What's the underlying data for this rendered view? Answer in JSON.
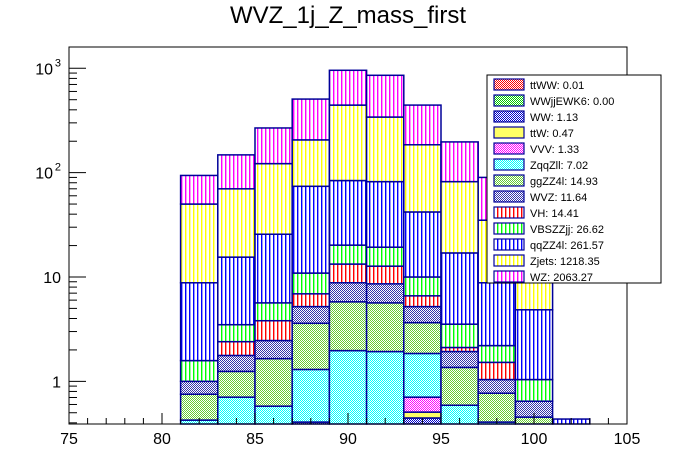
{
  "chart_data": {
    "type": "bar",
    "subtype": "stacked-histogram",
    "title": "WVZ_1j_Z_mass_first",
    "xlabel": "",
    "ylabel": "",
    "xlim": [
      75,
      105
    ],
    "ylim": [
      0.39,
      1600
    ],
    "yscale": "log",
    "grid": false,
    "legend_position": "top-right",
    "x_ticks": [
      "75",
      "80",
      "85",
      "90",
      "95",
      "100",
      "105"
    ],
    "x_tick_values": [
      75,
      80,
      85,
      90,
      95,
      100,
      105
    ],
    "y_ticks": [
      {
        "value": 1,
        "label": "1",
        "exp": ""
      },
      {
        "value": 10,
        "label": "10",
        "exp": ""
      },
      {
        "value": 100,
        "label": "10",
        "exp": "2"
      },
      {
        "value": 1000,
        "label": "10",
        "exp": "3"
      }
    ],
    "bin_edges": [
      81,
      83,
      85,
      87,
      89,
      91,
      93,
      95,
      97,
      99,
      101,
      103
    ],
    "stack_order_bottom_to_top": [
      "ttWW",
      "WWjjEWK6",
      "WW",
      "ttW",
      "VVV",
      "ZqqZll",
      "ggZZ4l",
      "WVZ",
      "VH",
      "VBSZZjj",
      "qqZZ4l",
      "Zjets",
      "WZ"
    ],
    "cumulative_tops": {
      "ttWW": [
        0,
        0,
        0,
        0,
        0,
        0,
        0,
        0,
        0,
        0,
        0
      ],
      "WWjjEWK6": [
        0,
        0,
        0,
        0,
        0,
        0,
        0,
        0,
        0,
        0,
        0
      ],
      "WW": [
        0,
        0,
        0,
        0.407,
        0,
        0,
        0.445,
        0,
        0,
        0,
        0
      ],
      "ttW": [
        0,
        0,
        0,
        0.407,
        0,
        0,
        0.507,
        0,
        0,
        0,
        0
      ],
      "VVV": [
        0,
        0,
        0,
        0.407,
        0,
        0,
        0.705,
        0,
        0,
        0,
        0
      ],
      "ZqqZll": [
        0.425,
        0.705,
        0.578,
        1.3,
        1.97,
        1.93,
        1.85,
        0.59,
        0.407,
        0.39,
        0
      ],
      "ggZZ4l": [
        0.752,
        1.245,
        1.65,
        3.6,
        5.78,
        5.65,
        3.65,
        1.36,
        0.769,
        0.454,
        0
      ],
      "WVZ": [
        1.0,
        1.77,
        2.46,
        5.2,
        8.8,
        8.6,
        5.2,
        1.93,
        1.04,
        0.645,
        0
      ],
      "VH": [
        1.0,
        2.4,
        3.81,
        6.9,
        13.3,
        12.7,
        6.6,
        2.11,
        1.52,
        0.645,
        0
      ],
      "VBSZZjj": [
        1.58,
        3.49,
        5.65,
        10.9,
        20.2,
        19.3,
        10.0,
        3.53,
        2.2,
        1.04,
        0
      ],
      "qqZZ4l": [
        8.8,
        15.5,
        25.7,
        74,
        84,
        82,
        42,
        17,
        8.8,
        4.85,
        0.435
      ],
      "Zjets": [
        50,
        70,
        122,
        206,
        444,
        341,
        185,
        82,
        35,
        9,
        0.435
      ],
      "WZ": [
        94,
        148,
        268,
        507,
        957,
        857,
        444,
        197,
        90,
        9,
        0.435
      ]
    },
    "series": [
      {
        "name": "ttWW",
        "label": "ttWW: 0.01",
        "total": 0.01,
        "fill": "#ff0000",
        "pattern": "checker"
      },
      {
        "name": "WWjjEWK6",
        "label": "WWjjEWK6: 0.00",
        "total": 0.0,
        "fill": "#00cc00",
        "pattern": "checker"
      },
      {
        "name": "WW",
        "label": "WW: 1.13",
        "total": 1.13,
        "fill": "#0000cc",
        "pattern": "checker"
      },
      {
        "name": "ttW",
        "label": "ttW: 0.47",
        "total": 0.47,
        "fill": "#ffff00",
        "pattern": "solid-light"
      },
      {
        "name": "VVV",
        "label": "VVV: 1.33",
        "total": 1.33,
        "fill": "#ff00ff",
        "pattern": "checker"
      },
      {
        "name": "ZqqZll",
        "label": "ZqqZll: 7.02",
        "total": 7.02,
        "fill": "#00ffff",
        "pattern": "checker"
      },
      {
        "name": "ggZZ4l",
        "label": "ggZZ4l: 14.93",
        "total": 14.93,
        "fill": "#66cc33",
        "pattern": "checker"
      },
      {
        "name": "WVZ",
        "label": "WVZ: 11.64",
        "total": 11.64,
        "fill": "#3333aa",
        "pattern": "checker"
      },
      {
        "name": "VH",
        "label": "VH: 14.41",
        "total": 14.41,
        "fill": "#ff0000",
        "pattern": "vlines"
      },
      {
        "name": "VBSZZjj",
        "label": "VBSZZjj: 26.62",
        "total": 26.62,
        "fill": "#00ff00",
        "pattern": "vlines"
      },
      {
        "name": "qqZZ4l",
        "label": "qqZZ4l: 261.57",
        "total": 261.57,
        "fill": "#0000ff",
        "pattern": "vlines"
      },
      {
        "name": "Zjets",
        "label": "Zjets: 1218.35",
        "total": 1218.35,
        "fill": "#ffff00",
        "pattern": "vlines"
      },
      {
        "name": "WZ",
        "label": "WZ: 2063.27",
        "total": 2063.27,
        "fill": "#ff00ff",
        "pattern": "vlines"
      }
    ],
    "edge_color": "#000099"
  }
}
